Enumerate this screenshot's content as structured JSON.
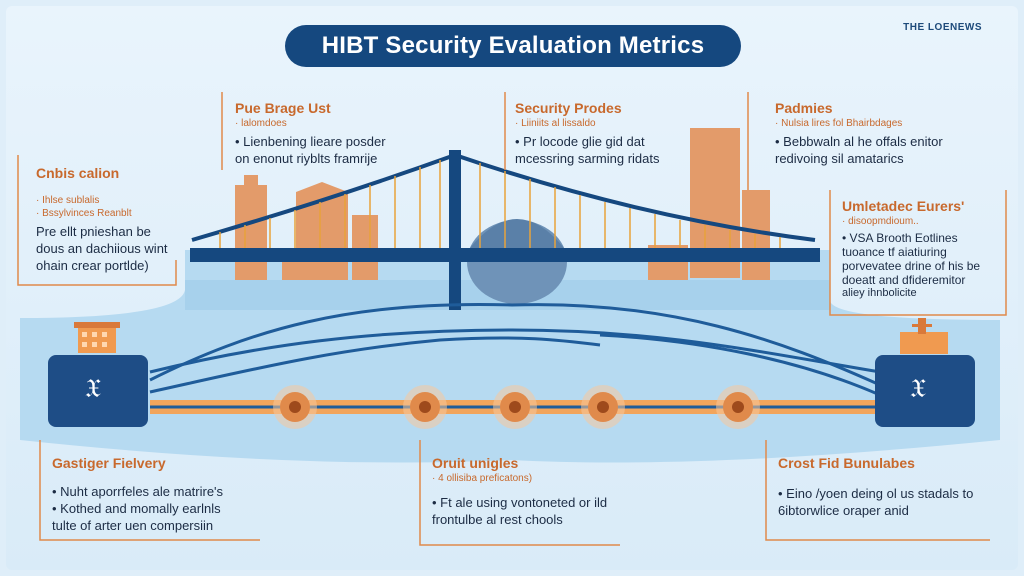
{
  "header": {
    "title": "HIBT Security Evaluation Metrics",
    "brand": "THE LOENEWS"
  },
  "panels": {
    "top_left": {
      "title": "Pue Brage Ust",
      "subtitle": "· lalomdoes",
      "lines": [
        "• Lienbening lieare posder",
        "on enonut riyblts framrije"
      ]
    },
    "top_center": {
      "title": "Security Prodes",
      "subtitle": "· Liiniits al lissaldo",
      "lines": [
        "• Pr locode glie gid dat",
        "mcessring sarming ridats"
      ]
    },
    "top_right": {
      "title": "Padmies",
      "subtitle": "· Nulsia lires fol Bhairbdages",
      "lines": [
        "• Bebbwaln al he offals enitor",
        "redivoing sil amatarics"
      ]
    },
    "left": {
      "title": "Cnbis calion",
      "subtitle1": "· Ihlse sublalis",
      "subtitle2": "· Bssylvinces Reanblt",
      "lines": [
        "Pre ellt pnieshan be",
        "dous an dachiious wint",
        "ohain crear portlde)"
      ]
    },
    "right": {
      "title": "Umletadec Eurers'",
      "subtitle": "· disoopmdioum..",
      "lines": [
        "• VSA Brooth Eotlines",
        "tuoance tf aiatiuring",
        "porvevatee drine of his be",
        "doeatt and dfideremitor",
        "aliey ihnbolicite"
      ]
    },
    "bottom_left": {
      "title": "Gastiger Fielvery",
      "lines": [
        "• Nuht aporrfeles ale matrire's",
        "• Kothed and momally earlnls",
        "tulte of arter uen compersiin"
      ]
    },
    "bottom_center": {
      "title": "Oruit unigles",
      "subtitle": "· 4 ollisiba preficatons)",
      "lines": [
        "• Ft ale using vontoneted or ild",
        "frontulbe al rest chools"
      ]
    },
    "bottom_right": {
      "title": "Crost Fid Bunulabes",
      "lines": [
        "• Eino /yoen deing ol us stadals to",
        "6ibtorwlice oraper anid"
      ]
    }
  },
  "nodes": {
    "left_icon": "𝔛",
    "right_icon": "𝔛",
    "count": 5
  },
  "colors": {
    "navy": "#15487f",
    "orange": "#e08a4b",
    "water": "#a9d2ee",
    "background": "#dfeef9"
  }
}
